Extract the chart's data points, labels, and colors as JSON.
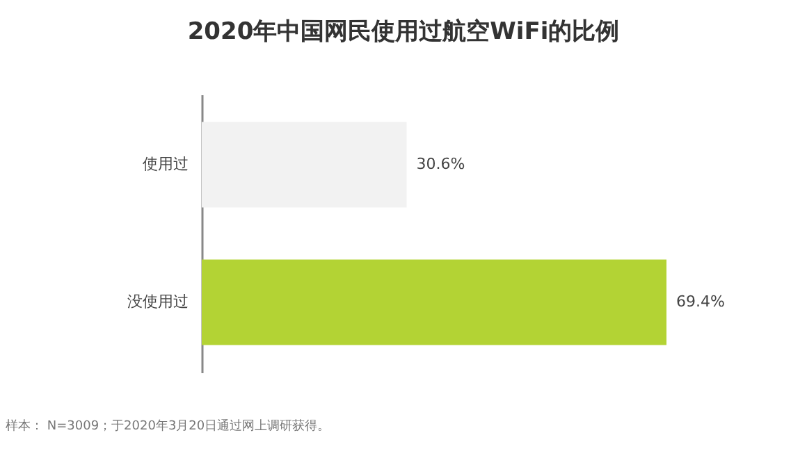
{
  "chart_data": {
    "type": "bar",
    "orientation": "horizontal",
    "title": "2020年中国网民使用过航空WiFi的比例",
    "categories": [
      "使用过",
      "没使用过"
    ],
    "values": [
      30.6,
      69.4
    ],
    "colors": [
      "#f2f2f2",
      "#b3d334"
    ],
    "value_labels": [
      "30.6%",
      "69.4%"
    ],
    "annotations": [
      "样本： N=3009；于2020年3月20日通过网上调研获得。"
    ]
  }
}
